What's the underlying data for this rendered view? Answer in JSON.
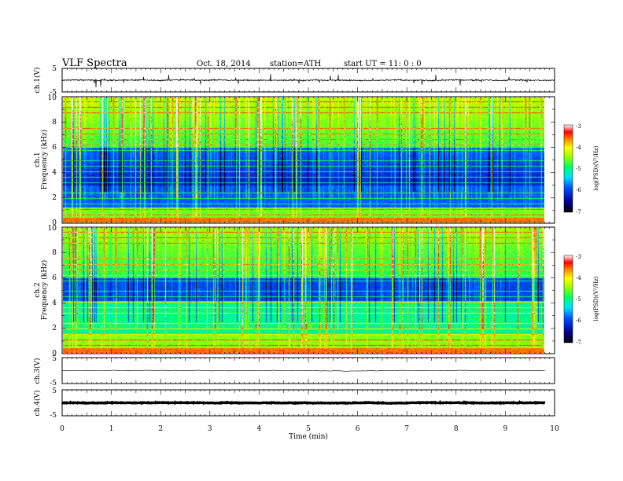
{
  "header": {
    "title": "VLF  Spectra",
    "date": "Oct. 18, 2014",
    "station": "station=ATH",
    "start": "start  UT  =    11: 0  : 0"
  },
  "chart_data": [
    {
      "type": "line",
      "panel": "ch1-waveform",
      "ylabel": "ch.1(V)",
      "ylim": [
        -5,
        5
      ],
      "yticks": [
        "5",
        "-5"
      ],
      "xlim": [
        0,
        10
      ],
      "baseline": 0,
      "noise_amplitude": 0.5,
      "spikes": true
    },
    {
      "type": "heatmap",
      "panel": "ch1-spectrogram",
      "ylabel_lines": [
        "ch.1",
        "Frequency  (kHz)"
      ],
      "ylim": [
        0,
        10
      ],
      "yticks": [
        "0",
        "2",
        "4",
        "6",
        "8",
        "10"
      ],
      "xlim": [
        0,
        9.8
      ],
      "colorbar": {
        "label": "log(PSD)(V²/Hz)",
        "ticks": [
          "-3",
          "-4",
          "-5",
          "-6",
          "-7"
        ],
        "range": [
          -7,
          -3
        ]
      }
    },
    {
      "type": "heatmap",
      "panel": "ch2-spectrogram",
      "ylabel_lines": [
        "ch.2",
        "Frequency  (kHz)"
      ],
      "ylim": [
        0,
        10
      ],
      "yticks": [
        "0",
        "2",
        "4",
        "6",
        "8",
        "10"
      ],
      "xlim": [
        0,
        9.8
      ],
      "colorbar": {
        "label": "log(PSD)(V²/Hz)",
        "ticks": [
          "-3",
          "-4",
          "-5",
          "-6",
          "-7"
        ],
        "range": [
          -7,
          -3
        ]
      }
    },
    {
      "type": "line",
      "panel": "ch3-waveform",
      "ylabel": "ch.3(V)",
      "ylim": [
        -5,
        5
      ],
      "yticks": [
        "5",
        "-5"
      ],
      "xlim": [
        0,
        9.8
      ],
      "baseline": 0,
      "noise_amplitude": 0.03
    },
    {
      "type": "line",
      "panel": "ch4-waveform",
      "ylabel": "ch.4(V)",
      "ylim": [
        -5,
        5
      ],
      "yticks": [
        "5",
        "-5"
      ],
      "xlim": [
        0,
        9.8
      ],
      "baseline": 0,
      "noise_amplitude": 0.2
    }
  ],
  "x_axis": {
    "label": "Time  (min)",
    "ticks": [
      "0",
      "1",
      "2",
      "3",
      "4",
      "5",
      "6",
      "7",
      "8",
      "9",
      "10"
    ],
    "range": [
      0,
      10
    ]
  }
}
